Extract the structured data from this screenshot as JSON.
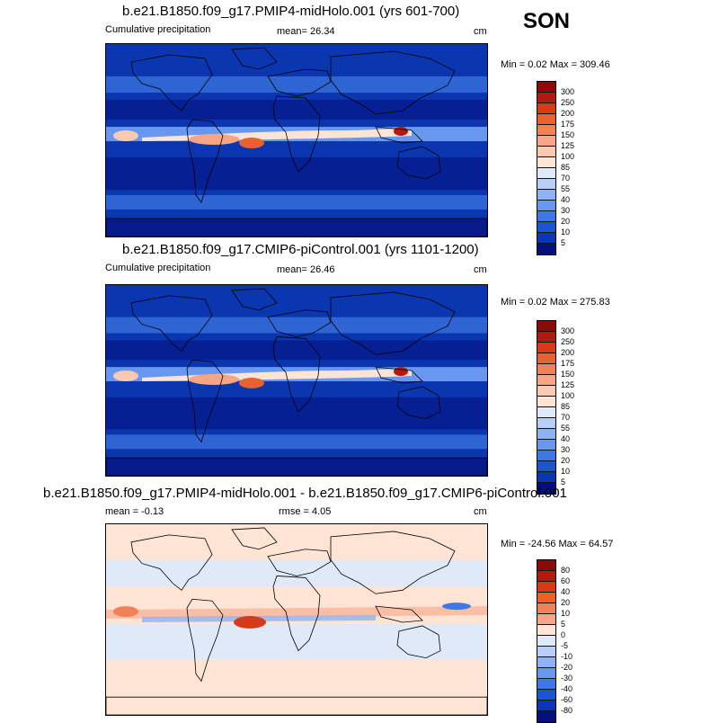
{
  "season": "SON",
  "panels": [
    {
      "title": "b.e21.B1850.f09_g17.PMIP4-midHolo.001 (yrs 601-700)",
      "left_label": "Cumulative precipitation",
      "center_label": "mean=  26.34",
      "units": "cm",
      "minmax": "Min =   0.02 Max = 309.46",
      "colorbar_labels": [
        "300",
        "250",
        "200",
        "175",
        "150",
        "125",
        "100",
        "85",
        "70",
        "55",
        "40",
        "30",
        "20",
        "10",
        "5"
      ],
      "colorbar_colors": [
        "#8b0a0a",
        "#b31a0f",
        "#d63a18",
        "#e8612f",
        "#f0825a",
        "#f6a585",
        "#fbc9b0",
        "#fde4d4",
        "#dfe9f8",
        "#b8cef5",
        "#8fb3f2",
        "#6797ee",
        "#3f78e3",
        "#1c55cf",
        "#0a36b0",
        "#030f7e"
      ],
      "map_field": "precip"
    },
    {
      "title": "b.e21.B1850.f09_g17.CMIP6-piControl.001 (yrs 1101-1200)",
      "left_label": "Cumulative precipitation",
      "center_label": "mean=  26.46",
      "units": "cm",
      "minmax": "Min =   0.02 Max = 275.83",
      "colorbar_labels": [
        "300",
        "250",
        "200",
        "175",
        "150",
        "125",
        "100",
        "85",
        "70",
        "55",
        "40",
        "30",
        "20",
        "10",
        "5"
      ],
      "colorbar_colors": [
        "#8b0a0a",
        "#b31a0f",
        "#d63a18",
        "#e8612f",
        "#f0825a",
        "#f6a585",
        "#fbc9b0",
        "#fde4d4",
        "#dfe9f8",
        "#b8cef5",
        "#8fb3f2",
        "#6797ee",
        "#3f78e3",
        "#1c55cf",
        "#0a36b0",
        "#030f7e"
      ],
      "map_field": "precip"
    },
    {
      "title": "b.e21.B1850.f09_g17.PMIP4-midHolo.001 - b.e21.B1850.f09_g17.CMIP6-piControl.001",
      "left_label": "mean =  -0.13",
      "center_label": "rmse =   4.05",
      "units": "cm",
      "minmax": "Min = -24.56 Max =  64.57",
      "colorbar_labels": [
        "80",
        "60",
        "40",
        "20",
        "10",
        "5",
        "0",
        "-5",
        "-10",
        "-20",
        "-30",
        "-40",
        "-60",
        "-80"
      ],
      "colorbar_colors": [
        "#8b0a0a",
        "#b31a0f",
        "#d63a18",
        "#e8612f",
        "#f0825a",
        "#f6a585",
        "#fde4d4",
        "#dfe9f8",
        "#b8cef5",
        "#8fb3f2",
        "#6797ee",
        "#3f78e3",
        "#1c55cf",
        "#0a36b0",
        "#030f7e"
      ],
      "map_field": "diff"
    }
  ]
}
